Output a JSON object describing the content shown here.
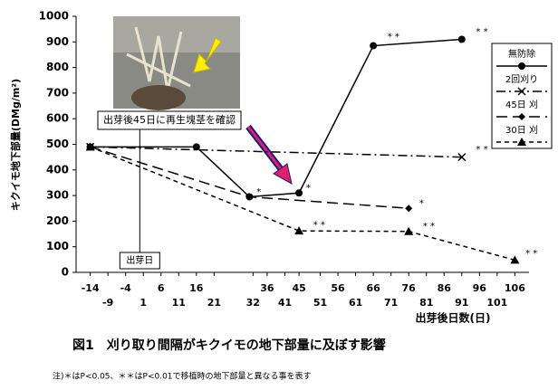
{
  "chart_data": {
    "type": "line",
    "title": "図1　刈り取り間隔がキクイモの地下部量に及ぼす影響",
    "footnote": "注)＊はP<0.05、＊＊はP<0.01で移植時の地下部量と異なる事を表す",
    "x_label": "出芽後日数(日)",
    "y_label": "キクイモ地下部量(DMg/m²)",
    "xlim": [
      -18,
      110
    ],
    "ylim": [
      0,
      1000
    ],
    "xticks": [
      -14,
      -9,
      -4,
      1,
      6,
      11,
      16,
      21,
      32,
      36,
      41,
      45,
      51,
      56,
      61,
      66,
      71,
      76,
      81,
      86,
      91,
      96,
      101,
      106
    ],
    "yticks": [
      0,
      100,
      200,
      300,
      400,
      500,
      600,
      700,
      800,
      900,
      1000
    ],
    "grid": false,
    "legend_position": "upper right",
    "series": [
      {
        "name": "無防除",
        "color": "#000000",
        "line_style": "solid",
        "marker": "circle",
        "x": [
          -14,
          16,
          31,
          45,
          66,
          91
        ],
        "values": [
          490,
          490,
          295,
          310,
          885,
          910
        ]
      },
      {
        "name": "2回刈り",
        "color": "#000000",
        "line_style": "dashdot",
        "marker": "x",
        "x": [
          -14,
          91
        ],
        "values": [
          490,
          450
        ]
      },
      {
        "name": "45日 刈",
        "color": "#000000",
        "line_style": "longdash",
        "marker": "diamond",
        "x": [
          -14,
          31,
          76
        ],
        "values": [
          490,
          295,
          250
        ]
      },
      {
        "name": "30日 刈",
        "color": "#000000",
        "line_style": "dash",
        "marker": "triangle",
        "x": [
          -14,
          45,
          76,
          106
        ],
        "values": [
          490,
          162,
          160,
          48
        ]
      }
    ],
    "annotations": [
      {
        "text": "*",
        "x": 33,
        "y": 315
      },
      {
        "text": "*",
        "x": 47,
        "y": 330
      },
      {
        "text": "* *",
        "x": 70,
        "y": 920
      },
      {
        "text": "* *",
        "x": 95,
        "y": 940
      },
      {
        "text": "* *",
        "x": 95,
        "y": 480
      },
      {
        "text": "*",
        "x": 79,
        "y": 270
      },
      {
        "text": "* *",
        "x": 49,
        "y": 185
      },
      {
        "text": "* *",
        "x": 80,
        "y": 180
      },
      {
        "text": "* *",
        "x": 109,
        "y": 75
      }
    ],
    "callout": "出芽後45日に再生塊茎を確認",
    "emergence_day": {
      "label": "出芽日",
      "x": 0
    }
  }
}
